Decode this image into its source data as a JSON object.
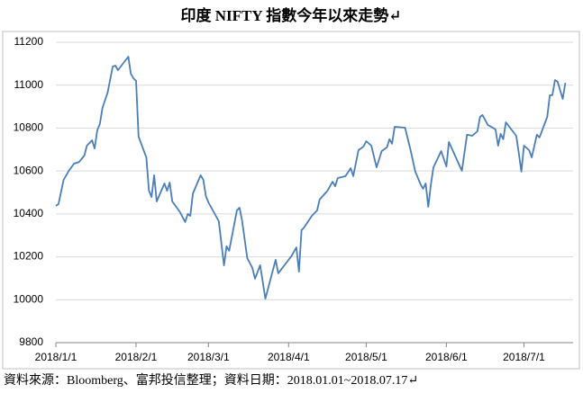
{
  "chart_data": {
    "type": "line",
    "title": "印度 NIFTY 指數今年以來走勢↵",
    "footer": "資料來源：Bloomberg、富邦投信整理；資料日期：2018.01.01~2018.07.17↵",
    "color": "#4a7ebb",
    "grid": true,
    "x": [
      "2018-01-01",
      "2018-01-02",
      "2018-01-04",
      "2018-01-06",
      "2018-01-08",
      "2018-01-10",
      "2018-01-12",
      "2018-01-13",
      "2018-01-15",
      "2018-01-16",
      "2018-01-17",
      "2018-01-18",
      "2018-01-19",
      "2018-01-21",
      "2018-01-23",
      "2018-01-24",
      "2018-01-25",
      "2018-01-29",
      "2018-01-30",
      "2018-01-31",
      "2018-02-01",
      "2018-02-02",
      "2018-02-05",
      "2018-02-06",
      "2018-02-07",
      "2018-02-08",
      "2018-02-09",
      "2018-02-12",
      "2018-02-13",
      "2018-02-14",
      "2018-02-15",
      "2018-02-18",
      "2018-02-20",
      "2018-02-21",
      "2018-02-22",
      "2018-02-23",
      "2018-02-26",
      "2018-02-27",
      "2018-02-28",
      "2018-03-01",
      "2018-03-05",
      "2018-03-07",
      "2018-03-08",
      "2018-03-09",
      "2018-03-12",
      "2018-03-13",
      "2018-03-14",
      "2018-03-16",
      "2018-03-18",
      "2018-03-19",
      "2018-03-21",
      "2018-03-23",
      "2018-03-27",
      "2018-03-28",
      "2018-04-02",
      "2018-04-04",
      "2018-04-05",
      "2018-04-06",
      "2018-04-07",
      "2018-04-10",
      "2018-04-12",
      "2018-04-13",
      "2018-04-16",
      "2018-04-18",
      "2018-04-19",
      "2018-04-20",
      "2018-04-23",
      "2018-04-25",
      "2018-04-26",
      "2018-04-28",
      "2018-04-30",
      "2018-05-01",
      "2018-05-03",
      "2018-05-05",
      "2018-05-07",
      "2018-05-09",
      "2018-05-10",
      "2018-05-11",
      "2018-05-12",
      "2018-05-16",
      "2018-05-18",
      "2018-05-20",
      "2018-05-22",
      "2018-05-23",
      "2018-05-24",
      "2018-05-25",
      "2018-05-26",
      "2018-05-27",
      "2018-05-30",
      "2018-06-01",
      "2018-06-02",
      "2018-06-07",
      "2018-06-09",
      "2018-06-11",
      "2018-06-13",
      "2018-06-14",
      "2018-06-15",
      "2018-06-17",
      "2018-06-20",
      "2018-06-21",
      "2018-06-22",
      "2018-06-23",
      "2018-06-24",
      "2018-06-28",
      "2018-06-29",
      "2018-06-30",
      "2018-07-01",
      "2018-07-03",
      "2018-07-04",
      "2018-07-06",
      "2018-07-07",
      "2018-07-10",
      "2018-07-11",
      "2018-07-12",
      "2018-07-13",
      "2018-07-14",
      "2018-07-16",
      "2018-07-17"
    ],
    "values": [
      10437,
      10446,
      10559,
      10600,
      10634,
      10642,
      10672,
      10718,
      10743,
      10705,
      10789,
      10819,
      10894,
      10965,
      11087,
      11091,
      11070,
      11133,
      11053,
      11032,
      11020,
      10760,
      10663,
      10508,
      10479,
      10580,
      10458,
      10542,
      10508,
      10546,
      10458,
      10408,
      10362,
      10400,
      10391,
      10496,
      10580,
      10559,
      10483,
      10454,
      10366,
      10160,
      10249,
      10228,
      10416,
      10429,
      10370,
      10194,
      10148,
      10098,
      10161,
      10005,
      10186,
      10123,
      10202,
      10244,
      10131,
      10324,
      10337,
      10391,
      10416,
      10467,
      10508,
      10550,
      10529,
      10567,
      10576,
      10613,
      10576,
      10697,
      10714,
      10739,
      10718,
      10617,
      10693,
      10710,
      10748,
      10727,
      10806,
      10802,
      10705,
      10597,
      10538,
      10517,
      10542,
      10433,
      10534,
      10617,
      10693,
      10621,
      10735,
      10601,
      10769,
      10764,
      10785,
      10852,
      10861,
      10815,
      10794,
      10718,
      10773,
      10748,
      10827,
      10764,
      10685,
      10597,
      10718,
      10697,
      10663,
      10769,
      10756,
      10852,
      10953,
      10953,
      11024,
      11016,
      10936,
      11011
    ],
    "xlim": [
      "2018-01-01",
      "2018-07-20"
    ],
    "xticks": [
      {
        "value": "2018-01-01",
        "label": "2018/1/1"
      },
      {
        "value": "2018-02-01",
        "label": "2018/2/1"
      },
      {
        "value": "2018-03-01",
        "label": "2018/3/1"
      },
      {
        "value": "2018-04-01",
        "label": "2018/4/1"
      },
      {
        "value": "2018-05-01",
        "label": "2018/5/1"
      },
      {
        "value": "2018-06-01",
        "label": "2018/6/1"
      },
      {
        "value": "2018-07-01",
        "label": "2018/7/1"
      }
    ],
    "ylim": [
      9800,
      11200
    ],
    "yticks": [
      9800,
      10000,
      10200,
      10400,
      10600,
      10800,
      11000,
      11200
    ]
  }
}
